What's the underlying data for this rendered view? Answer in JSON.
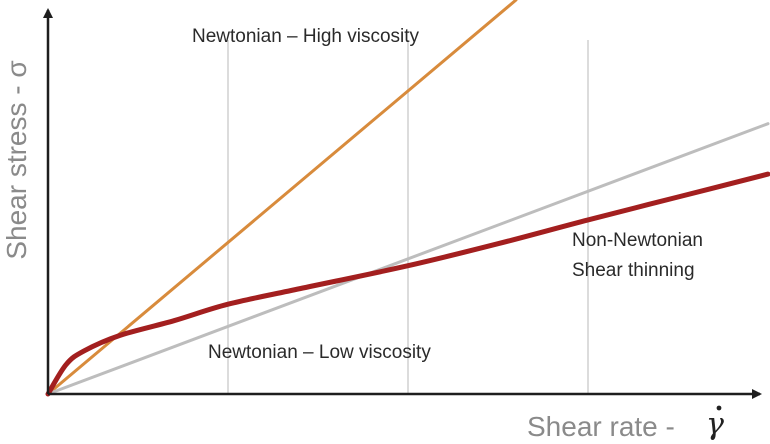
{
  "chart_data": {
    "type": "line",
    "xlabel": "Shear rate - ",
    "xlabel_symbol": "γ",
    "ylabel": "Shear stress - σ",
    "xlim": [
      0,
      4
    ],
    "ylim": [
      0,
      4.3
    ],
    "grid": "vertical",
    "x_grid_lines": [
      1,
      2,
      3
    ],
    "annotations": {
      "high": "Newtonian – High viscosity",
      "low": "Newtonian – Low viscosity",
      "nn_line1": "Non-Newtonian",
      "nn_line2": "Shear thinning"
    },
    "series": [
      {
        "name": "Newtonian – High viscosity",
        "color": "#d88b3c",
        "x": [
          0,
          2.6
        ],
        "y": [
          0,
          4.3
        ]
      },
      {
        "name": "Newtonian – Low viscosity",
        "color": "#bdbdbd",
        "x": [
          0,
          4.0
        ],
        "y": [
          0,
          2.95
        ]
      },
      {
        "name": "Non-Newtonian Shear thinning",
        "color": "#a31f1f",
        "x": [
          0,
          0.1,
          0.2,
          0.4,
          0.7,
          1.0,
          1.4,
          2.0,
          2.5,
          3.0,
          3.5,
          4.0
        ],
        "y": [
          0,
          0.32,
          0.47,
          0.64,
          0.8,
          0.98,
          1.15,
          1.4,
          1.64,
          1.9,
          2.15,
          2.4
        ]
      }
    ]
  },
  "colors": {
    "axis": "#1e1e1e",
    "grid": "#dcdcdc"
  }
}
